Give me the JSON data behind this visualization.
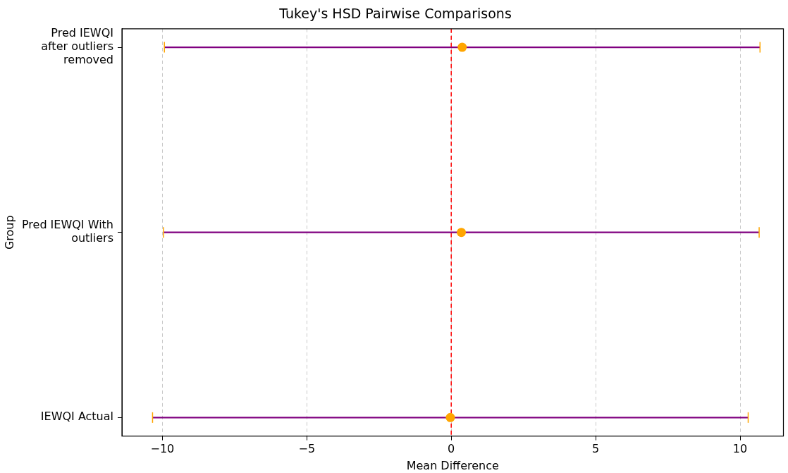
{
  "chart_data": {
    "type": "scatter",
    "title": "Tukey's HSD Pairwise Comparisons",
    "xlabel": "Mean Difference",
    "ylabel": "Group",
    "orientation": "horizontal",
    "categories": [
      "Pred IEWQI after outliers removed",
      "Pred IEWQI With outliers",
      "IEWQI Actual"
    ],
    "series": [
      {
        "color": "#ffa500",
        "values": [
          0.38,
          0.35,
          -0.03
        ],
        "errors": [
          10.31,
          10.31,
          10.31
        ]
      }
    ],
    "xlim": [
      -11.4,
      11.5
    ],
    "xticks": [
      {
        "value": -10,
        "label": "−10"
      },
      {
        "value": -5,
        "label": "−5"
      },
      0,
      5,
      10
    ],
    "ref_lines": [
      {
        "axis": "x",
        "value": 0,
        "color": "#ff0000",
        "line_style": "dashed"
      }
    ],
    "grid": "x",
    "marker": "circle"
  }
}
